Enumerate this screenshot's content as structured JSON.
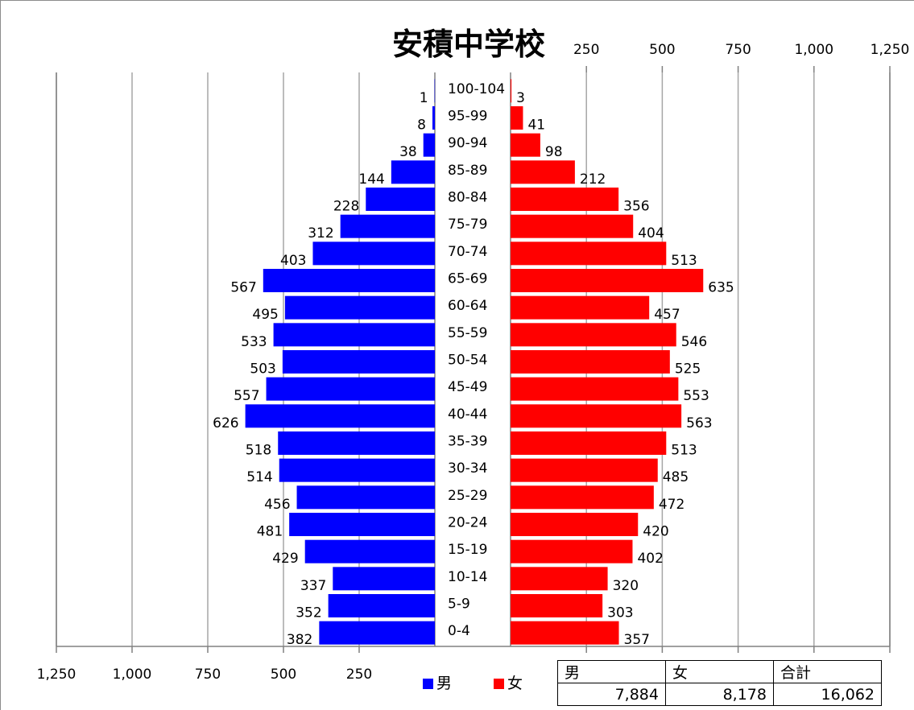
{
  "chart_data": {
    "type": "bar",
    "orientation": "horizontal-population-pyramid",
    "title": "安積中学校",
    "categories": [
      "0-4",
      "5-9",
      "10-14",
      "15-19",
      "20-24",
      "25-29",
      "30-34",
      "35-39",
      "40-44",
      "45-49",
      "50-54",
      "55-59",
      "60-64",
      "65-69",
      "70-74",
      "75-79",
      "80-84",
      "85-89",
      "90-94",
      "95-99",
      "100-104"
    ],
    "series": [
      {
        "name": "男",
        "color": "#0000FF",
        "values": [
          382,
          352,
          337,
          429,
          481,
          456,
          514,
          518,
          626,
          557,
          503,
          533,
          495,
          567,
          403,
          312,
          228,
          144,
          38,
          8,
          1
        ]
      },
      {
        "name": "女",
        "color": "#FF0000",
        "values": [
          357,
          303,
          320,
          402,
          420,
          472,
          485,
          513,
          563,
          553,
          525,
          546,
          457,
          635,
          513,
          404,
          356,
          212,
          98,
          41,
          3
        ]
      }
    ],
    "xlim": [
      0,
      1250
    ],
    "bottom_axis_ticks": [
      "1,250",
      "1,000",
      "750",
      "500",
      "250"
    ],
    "top_axis_ticks": [
      "250",
      "500",
      "750",
      "1,000",
      "1,250"
    ],
    "grid": true,
    "legend": "bottom-center"
  },
  "legend": {
    "male_label": "男",
    "female_label": "女"
  },
  "totals": {
    "male_header": "男",
    "female_header": "女",
    "total_header": "合計",
    "male_value": "7,884",
    "female_value": "8,178",
    "total_value": "16,062"
  }
}
